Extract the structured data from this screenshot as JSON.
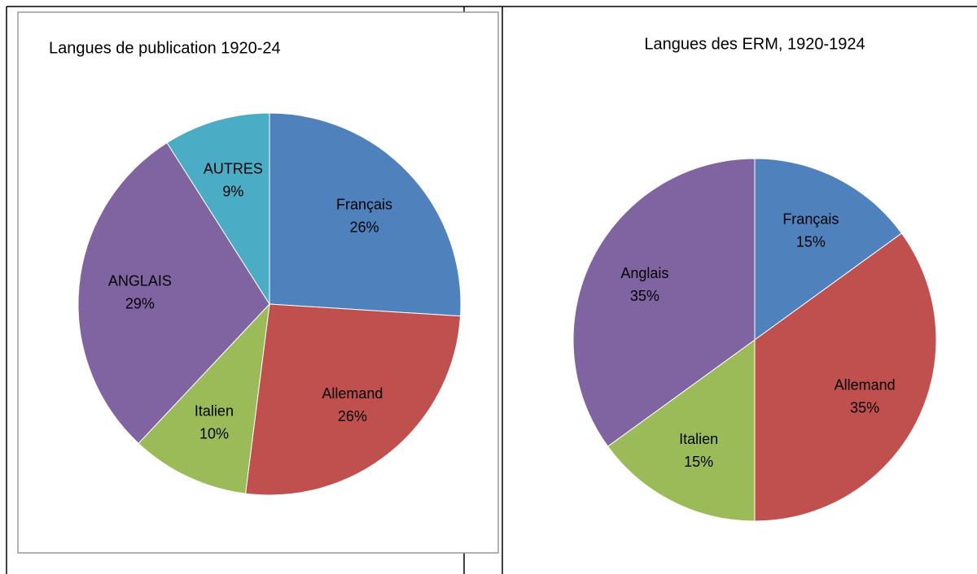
{
  "chart_data": [
    {
      "type": "pie",
      "title": "Langues de publication 1920-24",
      "categories": [
        "Français",
        "Allemand",
        "Italien",
        "ANGLAIS",
        "AUTRES"
      ],
      "values": [
        26,
        26,
        10,
        29,
        9
      ],
      "value_labels": [
        "26%",
        "26%",
        "10%",
        "29%",
        "9%"
      ],
      "colors": [
        "#4f81bd",
        "#c0504d",
        "#9bbb59",
        "#8064a2",
        "#4bacc6"
      ]
    },
    {
      "type": "pie",
      "title": "Langues des ERM, 1920-1924",
      "categories": [
        "Français",
        "Allemand",
        "Italien",
        "Anglais"
      ],
      "values": [
        15,
        35,
        15,
        35
      ],
      "value_labels": [
        "15%",
        "35%",
        "15%",
        "35%"
      ],
      "colors": [
        "#4f81bd",
        "#c0504d",
        "#9bbb59",
        "#8064a2"
      ]
    }
  ]
}
